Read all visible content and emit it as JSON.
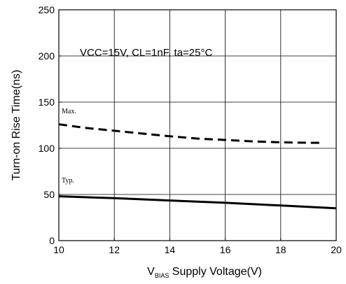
{
  "chart_data": {
    "type": "line",
    "title": "",
    "xlabel_prefix": "V",
    "xlabel_subscript": "BIAS",
    "xlabel_rest": " Supply Voltage(V)",
    "ylabel": "Turn-on Rise Time(ns)",
    "annotation": "VCC=15V, CL=1nF, ta=25°C",
    "xlim": [
      10,
      20
    ],
    "ylim": [
      0,
      250
    ],
    "x_ticks": [
      "10",
      "12",
      "14",
      "16",
      "18",
      "20"
    ],
    "y_ticks": [
      "0",
      "50",
      "100",
      "150",
      "200",
      "250"
    ],
    "grid": true,
    "series": [
      {
        "name": "Max.",
        "style": "dashed",
        "x": [
          10,
          11,
          12,
          13,
          14,
          15,
          16,
          17,
          18,
          19,
          19.5
        ],
        "values": [
          126,
          122,
          119,
          116,
          113,
          110.5,
          109,
          107.5,
          106.5,
          106,
          106
        ]
      },
      {
        "name": "Typ.",
        "style": "solid",
        "x": [
          10,
          12,
          14,
          16,
          18,
          20
        ],
        "values": [
          48,
          46,
          43.5,
          41,
          38,
          35
        ]
      }
    ]
  }
}
